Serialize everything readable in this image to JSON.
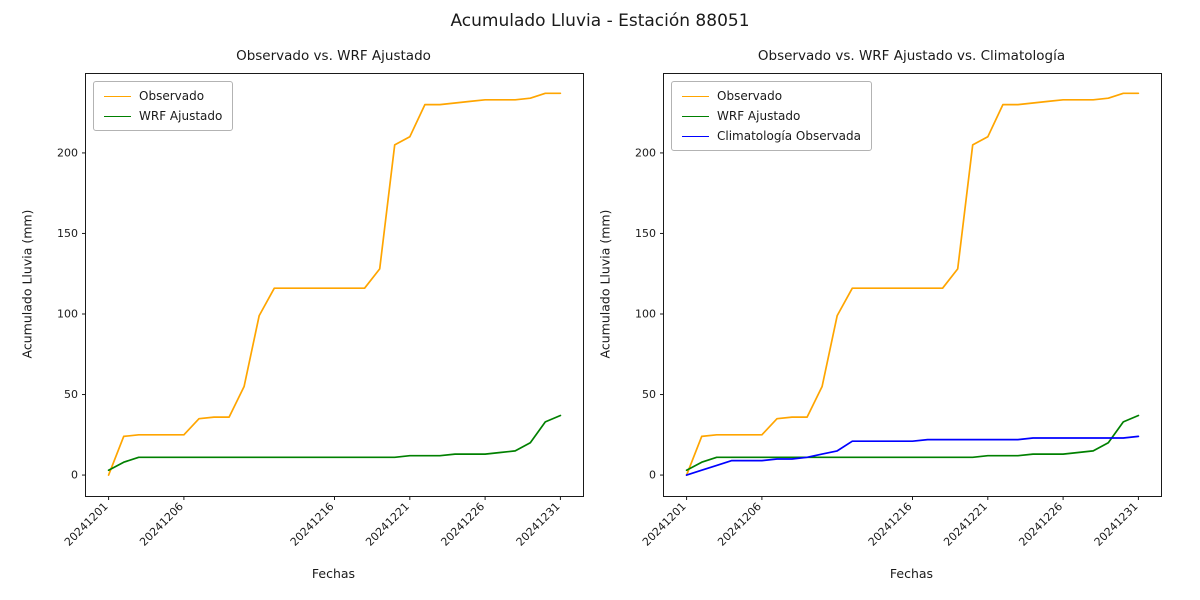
{
  "page_title": "Acumulado Lluvia - Estación 88051",
  "chart_data": [
    {
      "type": "line",
      "title": "Observado vs. WRF Ajustado",
      "xlabel": "Fechas",
      "ylabel": "Acumulado Lluvia (mm)",
      "legend_position": "upper left",
      "grid": false,
      "ylim": [
        -13,
        249
      ],
      "yticks": [
        0,
        50,
        100,
        150,
        200
      ],
      "xticks": [
        {
          "label": "20241201",
          "pos": 0
        },
        {
          "label": "20241206",
          "pos": 5
        },
        {
          "label": "20241216",
          "pos": 15
        },
        {
          "label": "20241221",
          "pos": 20
        },
        {
          "label": "20241226",
          "pos": 25
        },
        {
          "label": "20241231",
          "pos": 30
        }
      ],
      "x": [
        "20241201",
        "20241202",
        "20241203",
        "20241204",
        "20241205",
        "20241206",
        "20241207",
        "20241208",
        "20241209",
        "20241210",
        "20241211",
        "20241212",
        "20241213",
        "20241214",
        "20241215",
        "20241216",
        "20241217",
        "20241218",
        "20241219",
        "20241220",
        "20241221",
        "20241222",
        "20241223",
        "20241224",
        "20241225",
        "20241226",
        "20241227",
        "20241228",
        "20241229",
        "20241230",
        "20241231"
      ],
      "series": [
        {
          "name": "Observado",
          "color": "#FFA500",
          "values": [
            0,
            24,
            25,
            25,
            25,
            25,
            35,
            36,
            36,
            55,
            99,
            116,
            116,
            116,
            116,
            116,
            116,
            116,
            128,
            205,
            210,
            230,
            230,
            231,
            232,
            233,
            233,
            233,
            234,
            237,
            237
          ]
        },
        {
          "name": "WRF Ajustado",
          "color": "#008000",
          "values": [
            3,
            8,
            11,
            11,
            11,
            11,
            11,
            11,
            11,
            11,
            11,
            11,
            11,
            11,
            11,
            11,
            11,
            11,
            11,
            11,
            12,
            12,
            12,
            13,
            13,
            13,
            14,
            15,
            20,
            33,
            37
          ]
        }
      ]
    },
    {
      "type": "line",
      "title": "Observado vs. WRF Ajustado vs. Climatología",
      "xlabel": "Fechas",
      "ylabel": "Acumulado Lluvia (mm)",
      "legend_position": "upper left",
      "grid": false,
      "ylim": [
        -13,
        249
      ],
      "yticks": [
        0,
        50,
        100,
        150,
        200
      ],
      "xticks": [
        {
          "label": "20241201",
          "pos": 0
        },
        {
          "label": "20241206",
          "pos": 5
        },
        {
          "label": "20241216",
          "pos": 15
        },
        {
          "label": "20241221",
          "pos": 20
        },
        {
          "label": "20241226",
          "pos": 25
        },
        {
          "label": "20241231",
          "pos": 30
        }
      ],
      "x": [
        "20241201",
        "20241202",
        "20241203",
        "20241204",
        "20241205",
        "20241206",
        "20241207",
        "20241208",
        "20241209",
        "20241210",
        "20241211",
        "20241212",
        "20241213",
        "20241214",
        "20241215",
        "20241216",
        "20241217",
        "20241218",
        "20241219",
        "20241220",
        "20241221",
        "20241222",
        "20241223",
        "20241224",
        "20241225",
        "20241226",
        "20241227",
        "20241228",
        "20241229",
        "20241230",
        "20241231"
      ],
      "series": [
        {
          "name": "Observado",
          "color": "#FFA500",
          "values": [
            0,
            24,
            25,
            25,
            25,
            25,
            35,
            36,
            36,
            55,
            99,
            116,
            116,
            116,
            116,
            116,
            116,
            116,
            128,
            205,
            210,
            230,
            230,
            231,
            232,
            233,
            233,
            233,
            234,
            237,
            237
          ]
        },
        {
          "name": "WRF Ajustado",
          "color": "#008000",
          "values": [
            3,
            8,
            11,
            11,
            11,
            11,
            11,
            11,
            11,
            11,
            11,
            11,
            11,
            11,
            11,
            11,
            11,
            11,
            11,
            11,
            12,
            12,
            12,
            13,
            13,
            13,
            14,
            15,
            20,
            33,
            37
          ]
        },
        {
          "name": "Climatología Observada",
          "color": "#0000FF",
          "values": [
            0,
            3,
            6,
            9,
            9,
            9,
            10,
            10,
            11,
            13,
            15,
            21,
            21,
            21,
            21,
            21,
            22,
            22,
            22,
            22,
            22,
            22,
            22,
            23,
            23,
            23,
            23,
            23,
            23,
            23,
            24
          ]
        }
      ]
    }
  ]
}
